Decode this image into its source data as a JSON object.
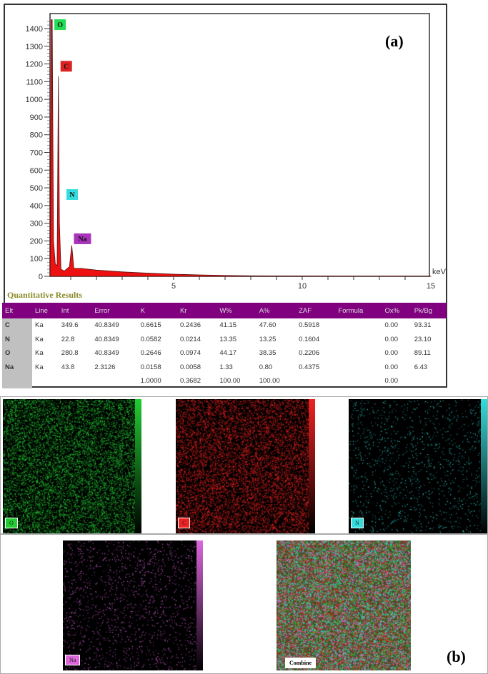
{
  "panel_a_label": "(a)",
  "panel_b_label": "(b)",
  "chart_data": {
    "type": "area",
    "xlabel": "keV",
    "ylabel": "",
    "xlim": [
      0,
      15
    ],
    "ylim": [
      0,
      1450
    ],
    "xticks": [
      "5",
      "10",
      "15"
    ],
    "yticks": [
      "0",
      "100",
      "200",
      "300",
      "400",
      "500",
      "600",
      "700",
      "800",
      "900",
      "1000",
      "1100",
      "1200",
      "1300",
      "1400"
    ],
    "series": [
      {
        "x": [
          0.2,
          0.24,
          0.28,
          0.33,
          0.4,
          0.47,
          0.52,
          0.56,
          0.62,
          0.75,
          0.95,
          1.04,
          1.12,
          1.4,
          2,
          3,
          4,
          5,
          6,
          7,
          8,
          10,
          12,
          15
        ],
        "y": [
          0,
          1500,
          1500,
          200,
          70,
          60,
          1130,
          300,
          40,
          30,
          55,
          175,
          45,
          45,
          35,
          25,
          18,
          12,
          8,
          5,
          3,
          2,
          1,
          1
        ]
      }
    ],
    "peak_labels": [
      {
        "text": "O",
        "x": 0.28,
        "y": 1420,
        "color": "#22dd55"
      },
      {
        "text": "C",
        "x": 0.52,
        "y": 1185,
        "color": "#dd2222"
      },
      {
        "text": "N",
        "x": 0.75,
        "y": 460,
        "color": "#33dddd"
      },
      {
        "text": "Na",
        "x": 1.04,
        "y": 210,
        "color": "#aa33bb"
      }
    ]
  },
  "table": {
    "title": "Quantitative Results",
    "headers": [
      "Elt",
      "Line",
      "Int",
      "Error",
      "K",
      "Kr",
      "W%",
      "A%",
      "ZAF",
      "Formula",
      "Ox%",
      "Pk/Bg"
    ],
    "rows": [
      [
        "C",
        "Ka",
        "349.6",
        "40.8349",
        "0.6615",
        "0.2436",
        "41.15",
        "47.60",
        "0.5918",
        "",
        "0.00",
        "93.31"
      ],
      [
        "N",
        "Ka",
        "22.8",
        "40.8349",
        "0.0582",
        "0.0214",
        "13.35",
        "13.25",
        "0.1604",
        "",
        "0.00",
        "23.10"
      ],
      [
        "O",
        "Ka",
        "280.8",
        "40.8349",
        "0.2646",
        "0.0974",
        "44.17",
        "38.35",
        "0.2206",
        "",
        "0.00",
        "89.11"
      ],
      [
        "Na",
        "Ka",
        "43.8",
        "2.3126",
        "0.0158",
        "0.0058",
        "1.33",
        "0.80",
        "0.4375",
        "",
        "0.00",
        "6.43"
      ],
      [
        "",
        "",
        "",
        "",
        "1.0000",
        "0.3682",
        "100.00",
        "100.00",
        "",
        "",
        "0.00",
        ""
      ]
    ]
  },
  "maps": [
    {
      "label": "O",
      "color": "#22cc33"
    },
    {
      "label": "C",
      "color": "#ee2222"
    },
    {
      "label": "N",
      "color": "#33dddd"
    },
    {
      "label": "Na",
      "color": "#dd66dd"
    },
    {
      "label": "Combine",
      "color": "#ffffff"
    }
  ]
}
